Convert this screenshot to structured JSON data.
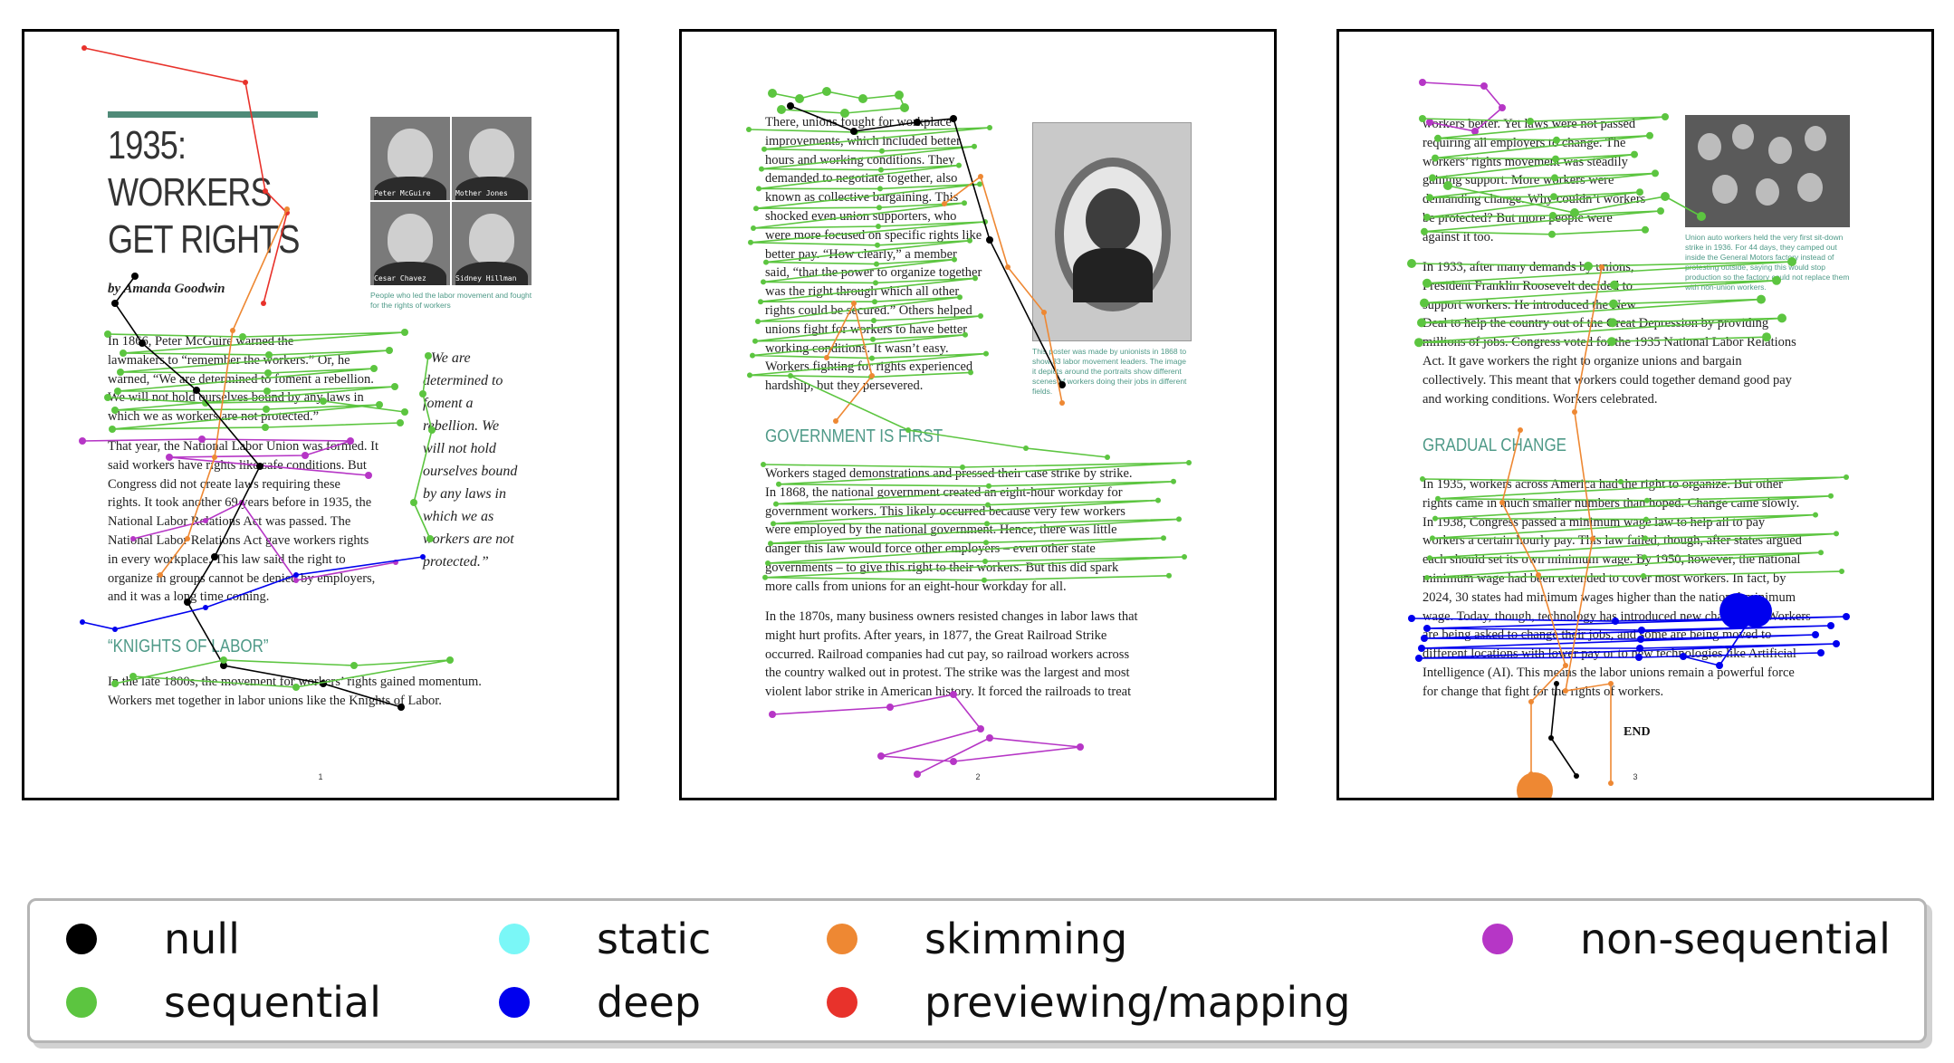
{
  "colors": {
    "null": "#000000",
    "sequential": "#5cc540",
    "static": "#7af7f7",
    "deep": "#0000ee",
    "skimming": "#ee8833",
    "previewing": "#e8322b",
    "non_sequential": "#b636c6"
  },
  "legend": {
    "items": [
      {
        "key": "null",
        "label": "null",
        "color": "#000000"
      },
      {
        "key": "sequential",
        "label": "sequential",
        "color": "#5cc540"
      },
      {
        "key": "static",
        "label": "static",
        "color": "#7af7f7"
      },
      {
        "key": "deep",
        "label": "deep",
        "color": "#0000ee"
      },
      {
        "key": "skimming",
        "label": "skimming",
        "color": "#ee8833"
      },
      {
        "key": "previewing",
        "label": "previewing/mapping",
        "color": "#e8322b"
      },
      {
        "key": "non_sequential",
        "label": "non-sequential",
        "color": "#b636c6"
      }
    ]
  },
  "page1": {
    "title_lines": [
      "1935:",
      "WORKERS",
      "GET RIGHTS"
    ],
    "byline": "by Amanda Goodwin",
    "photos": [
      {
        "label": "Peter McGuire",
        "icon": "portrait-icon"
      },
      {
        "label": "Mother Jones",
        "icon": "portrait-icon"
      },
      {
        "label": "Cesar Chavez",
        "icon": "portrait-icon"
      },
      {
        "label": "Sidney Hillman",
        "icon": "portrait-icon"
      }
    ],
    "photo_caption": "People who led the labor movement and fought for the rights of workers",
    "paragraphs": [
      [
        "In 1866, Peter McGuire warned the",
        "lawmakers to “remember the workers.” Or, he",
        "warned, “We are determined to foment a rebellion.",
        "We will not hold ourselves bound by any laws in",
        "which we as workers are not protected.”"
      ],
      [
        "That year, the National Labor Union was formed. It",
        "said workers have rights like safe conditions. But",
        "Congress did not create laws requiring these",
        "rights. It took another 69 years before in 1935, the",
        "National Labor Relations Act was passed. The",
        "National Labor Relations Act gave workers rights",
        "in every workplace. This law said the right to",
        "organize in groups cannot be denied by employers,",
        "and it was a long time coming."
      ]
    ],
    "quote_lines": [
      "“We are",
      "determined to",
      "foment a",
      "rebellion. We",
      "will not hold",
      "ourselves bound",
      "by any laws in",
      "which we as",
      "workers are not",
      "protected.”"
    ],
    "section": "“KNIGHTS OF LABOR”",
    "section_paragraph": [
      "In the late 1800s, the movement for workers’ rights gained momentum.",
      "Workers met together in labor unions like the Knights of Labor."
    ],
    "page_number": "1"
  },
  "page2": {
    "paragraphs": [
      [
        "There, unions fought for workplace",
        "improvements, which included better",
        "hours and working conditions. They",
        "demanded to negotiate together, also",
        "known as collective bargaining. This",
        "shocked even union supporters, who",
        "were more focused on specific rights like",
        "better pay. “How clearly,” a member",
        "said, “that the power to organize together",
        "was the right through which all other",
        "rights could be secured.” Others helped",
        "unions fight for workers to have better",
        "working conditions. It wasn’t easy.",
        "Workers fighting for rights experienced",
        "hardship, but they persevered."
      ]
    ],
    "poster_caption": "This poster was made by unionists in 1868 to show 33 labor movement leaders. The image it depicts around the portraits show different scenes of workers doing their jobs in different fields.",
    "section": "GOVERNMENT IS FIRST",
    "section_paragraphs": [
      [
        "Workers staged demonstrations and pressed their case strike by strike.",
        "In 1868, the national government created an eight-hour workday for",
        "government workers. This likely occurred because very few workers",
        "were employed by the national government. Hence, there was little",
        "danger this law would force other employers – even other state",
        "governments – to give this right to their workers. But this did spark",
        "more calls from unions for an eight-hour workday for all."
      ],
      [
        "In the 1870s, many business owners resisted changes in labor laws that",
        "might hurt profits.  After years, in 1877, the Great Railroad Strike",
        "occurred. Railroad companies had cut pay, so railroad workers across",
        "the country walked out in protest. The strike was the largest and most",
        "violent labor strike in American history. It forced the railroads to treat"
      ]
    ],
    "page_number": "2"
  },
  "page3": {
    "paragraphs": [
      [
        "workers better. Yet laws were not passed",
        "requiring all employers to change. The",
        "workers’ rights movement was steadily",
        "gaining support. More workers were",
        "demanding change. Why couldn’t workers",
        "be protected? But more people were",
        "against it too."
      ],
      [
        "In 1933, after many demands by unions,",
        "President Franklin Roosevelt decided to",
        "support workers. He introduced the New",
        "Deal to help the country out of the Great Depression by providing",
        "millions of jobs. Congress voted for the 1935 National Labor Relations",
        "Act. It gave workers the right to organize unions and bargain",
        "collectively. This meant that workers could together demand good pay",
        "and working conditions. Workers celebrated."
      ]
    ],
    "photo_caption": "Union auto workers held the very first sit-down strike in 1936. For 44 days, they camped out inside the General Motors factory instead of protesting outside, saying this would stop production so the factory could not replace them with non-union workers.",
    "section": "GRADUAL CHANGE",
    "section_paragraph": [
      "In 1935, workers across America had the right to organize. But other",
      "rights came in much smaller numbers than hoped. Change came slowly.",
      "In 1938, Congress passed a minimum wage law to help all to pay",
      "workers a certain hourly pay. This law failed, though, after states argued",
      "each should set its own minimum wage. By 1950, however, the national",
      "minimum wage had been extended to cover most workers. In fact, by",
      "2024, 30 states had minimum wages higher than the national minimum",
      "wage. Today, though, technology has introduced new challenges. Workers",
      "are being asked to change their jobs, and some are being moved to",
      "different locations with lower pay or to new technologies like Artificial",
      "Intelligence (AI). This means the labor unions remain a powerful force",
      "for change that fight for the rights of workers."
    ],
    "end_label": "END",
    "page_number": "3"
  }
}
